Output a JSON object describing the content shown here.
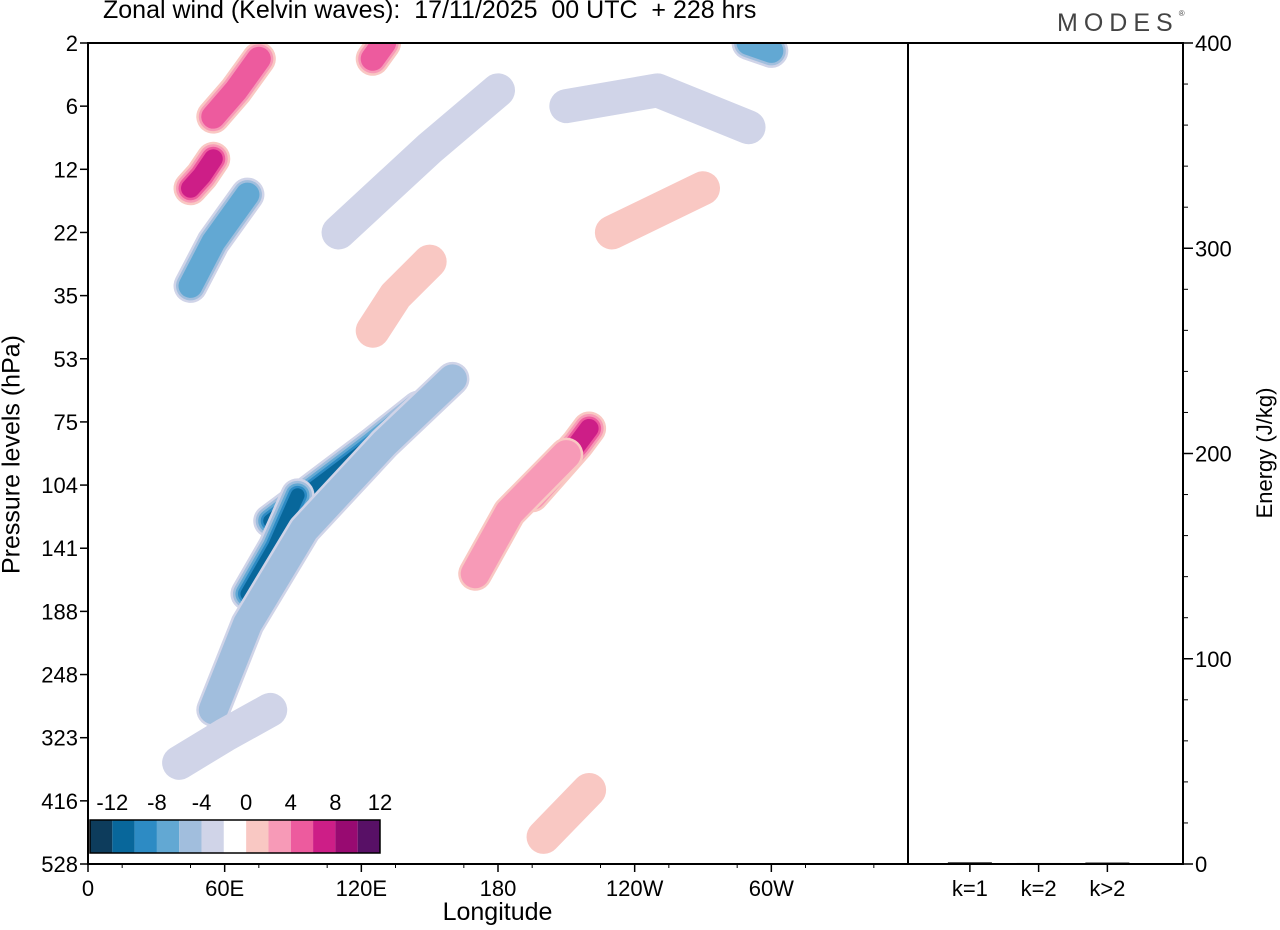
{
  "title": "Zonal wind (Kelvin waves):  17/11/2025  00 UTC  + 228 hrs",
  "brand": "MODES",
  "brand_mark": "®",
  "colors": {
    "neg": [
      "#0d3c5c",
      "#08679b",
      "#2d8bc4",
      "#62a8d3",
      "#a1bedd",
      "#d0d4e8"
    ],
    "pos": [
      "#f9c8c3",
      "#f79ab7",
      "#ed5b9e",
      "#cd1e87",
      "#980a71",
      "#581066"
    ]
  },
  "chart_data": [
    {
      "type": "heatmap",
      "title": "Zonal wind (Kelvin waves):  17/11/2025  00 UTC  + 228 hrs",
      "xlabel": "Longitude",
      "ylabel": "Pressure levels (hPa)",
      "x_ticks": [
        "0",
        "60E",
        "120E",
        "180",
        "120W",
        "60W"
      ],
      "y_ticks": [
        "2",
        "6",
        "12",
        "22",
        "35",
        "53",
        "75",
        "104",
        "141",
        "188",
        "248",
        "323",
        "416",
        "528"
      ],
      "colorbar": {
        "labels": [
          "-12",
          "-8",
          "-4",
          "0",
          "4",
          "8",
          "12"
        ],
        "levels": [
          -14,
          -12,
          -10,
          -8,
          -6,
          -4,
          -2,
          2,
          4,
          6,
          8,
          10,
          12,
          14
        ]
      },
      "features": [
        {
          "x": [
            80,
            95,
            125,
            145
          ],
          "y": [
            125,
            110,
            85,
            70
          ],
          "value": -11
        },
        {
          "x": [
            70,
            82,
            92
          ],
          "y": [
            175,
            140,
            110
          ],
          "value": -10
        },
        {
          "x": [
            55,
            70,
            95,
            130,
            160
          ],
          "y": [
            290,
            200,
            130,
            85,
            60
          ],
          "value": -4
        },
        {
          "x": [
            45,
            55,
            70
          ],
          "y": [
            33,
            24,
            16
          ],
          "value": -7
        },
        {
          "x": [
            40,
            60,
            80
          ],
          "y": [
            360,
            320,
            290
          ],
          "value": -3
        },
        {
          "x": [
            110,
            150,
            180
          ],
          "y": [
            22,
            10,
            5
          ],
          "value": -3
        },
        {
          "x": [
            210,
            250,
            290
          ],
          "y": [
            6,
            5,
            8
          ],
          "value": -3
        },
        {
          "x": [
            290,
            300
          ],
          "y": [
            2,
            2.5
          ],
          "value": -6
        },
        {
          "x": [
            195,
            215,
            220
          ],
          "y": [
            110,
            85,
            78
          ],
          "value": 8
        },
        {
          "x": [
            170,
            185,
            210
          ],
          "y": [
            160,
            120,
            90
          ],
          "value": 4
        },
        {
          "x": [
            125,
            135,
            150
          ],
          "y": [
            45,
            35,
            28
          ],
          "value": 3
        },
        {
          "x": [
            45,
            50,
            55
          ],
          "y": [
            15,
            13,
            11
          ],
          "value": 9
        },
        {
          "x": [
            55,
            65,
            75
          ],
          "y": [
            7,
            5,
            3
          ],
          "value": 6
        },
        {
          "x": [
            125,
            130
          ],
          "y": [
            3,
            2
          ],
          "value": 7
        },
        {
          "x": [
            230,
            270
          ],
          "y": [
            22,
            15
          ],
          "value": 3
        },
        {
          "x": [
            200,
            220
          ],
          "y": [
            480,
            400
          ],
          "value": 3
        }
      ]
    },
    {
      "type": "bar",
      "ylabel": "Energy (J/kg)",
      "categories": [
        "k=1",
        "k=2",
        "k>2"
      ],
      "values": [
        0.8,
        0.5,
        0.7
      ],
      "ylim": [
        0,
        400
      ],
      "y_ticks": [
        "0",
        "100",
        "200",
        "300",
        "400"
      ]
    }
  ]
}
